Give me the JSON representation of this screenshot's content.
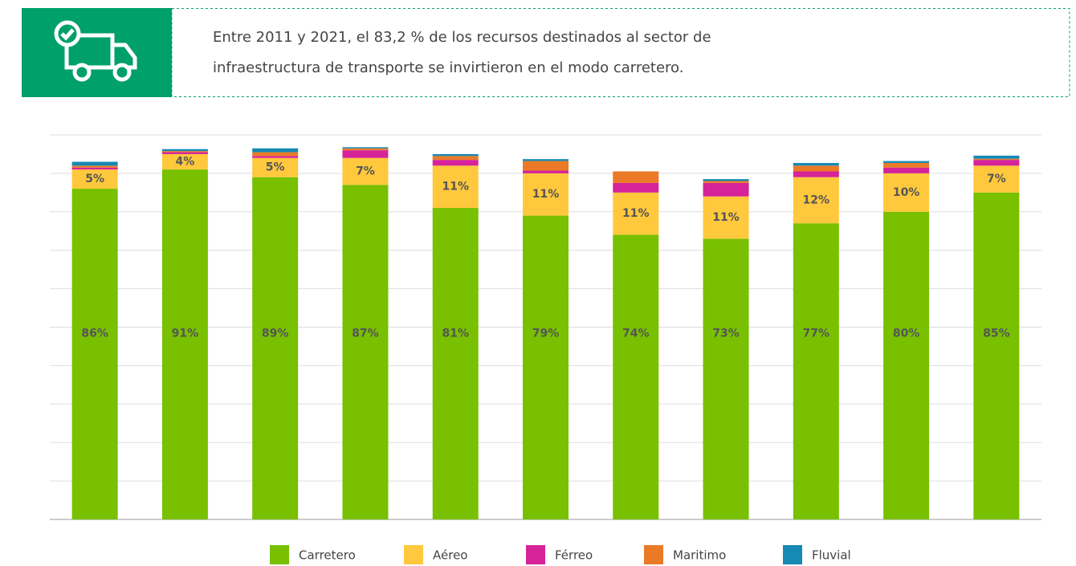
{
  "header": {
    "lines": [
      "Entre 2011 y 2021, el 83,2 % de los recursos destinados al sector de",
      "infraestructura de transporte se invirtieron en el modo carretero."
    ]
  },
  "chart_data": {
    "type": "stacked_bar",
    "categories": [
      null,
      null,
      null,
      null,
      null,
      null,
      null,
      null,
      null,
      null,
      null
    ],
    "series": [
      {
        "name": "Carretero",
        "color": "#78c000",
        "values": [
          86,
          91,
          89,
          87,
          81,
          79,
          74,
          73,
          77,
          80,
          85
        ],
        "value_labels": [
          "86%",
          "91%",
          "89%",
          "87%",
          "81%",
          "79%",
          "74%",
          "73%",
          "77%",
          "80%",
          "85%"
        ]
      },
      {
        "name": "Aéreo",
        "color": "#ffc83d",
        "values": [
          5,
          4,
          5,
          7,
          11,
          11,
          11,
          11,
          12,
          10,
          7
        ],
        "value_labels": [
          "5%",
          "4%",
          "5%",
          "7%",
          "11%",
          "11%",
          "11%",
          "11%",
          "12%",
          "10%",
          "7%"
        ]
      },
      {
        "name": "Férreo",
        "color": "#d6239a",
        "values": [
          0.5,
          0.5,
          0.5,
          2,
          1.5,
          0.7,
          2.5,
          3.5,
          1.5,
          1.5,
          1.5
        ]
      },
      {
        "name": "Maritimo",
        "color": "#eb7a26",
        "values": [
          0.5,
          0.3,
          1,
          0.5,
          1,
          2.5,
          3,
          0.5,
          1.5,
          1.2,
          0.3
        ]
      },
      {
        "name": "Fluvial",
        "color": "#1689b5",
        "values": [
          1,
          0.5,
          1,
          0.3,
          0.5,
          0.5,
          0,
          0.5,
          0.7,
          0.5,
          0.8
        ]
      }
    ],
    "ylim": [
      0,
      100
    ],
    "yticks": [
      0,
      10,
      20,
      30,
      40,
      50,
      60,
      70,
      80,
      90,
      100
    ],
    "grid": true
  }
}
